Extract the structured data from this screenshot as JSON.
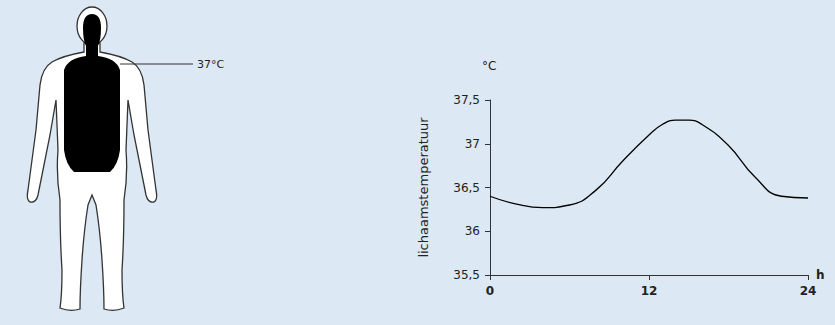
{
  "diagram": {
    "core_label": "37°C"
  },
  "chart_data": {
    "type": "line",
    "ylabel": "lichaamstemperatuur",
    "y_unit": "°C",
    "x_unit": "h",
    "x": [
      0,
      2,
      4,
      6,
      8,
      10,
      12,
      13,
      14,
      15,
      16,
      18,
      20,
      22,
      24
    ],
    "values": [
      36.4,
      36.31,
      36.27,
      36.3,
      36.47,
      36.8,
      37.1,
      37.22,
      37.27,
      37.27,
      37.22,
      36.98,
      36.62,
      36.4,
      36.38
    ],
    "color": "#000000",
    "xlim": [
      0,
      24
    ],
    "xticks": [
      0,
      12,
      24
    ],
    "ylim": [
      35.5,
      37.5
    ],
    "yticks": [
      {
        "value": 35.5,
        "label": "35,5"
      },
      36,
      {
        "value": 36.5,
        "label": "36,5"
      },
      37,
      {
        "value": 37.5,
        "label": "37,5"
      }
    ],
    "grid": false
  }
}
